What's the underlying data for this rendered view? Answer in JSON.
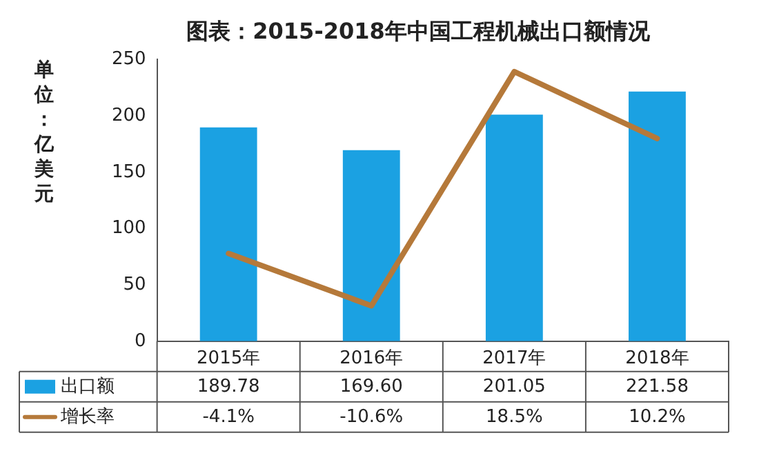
{
  "chart_data": {
    "type": "bar",
    "title": "图表：2015-2018年中国工程机械出口额情况",
    "ylabel": "单位：亿美元",
    "categories": [
      "2015年",
      "2016年",
      "2017年",
      "2018年"
    ],
    "series": [
      {
        "name": "出口额",
        "color": "#1ba1e2",
        "values": [
          189.78,
          169.6,
          201.05,
          221.58
        ],
        "value_labels": [
          "189.78",
          "169.60",
          "201.05",
          "221.58"
        ]
      },
      {
        "name": "增长率",
        "type": "line",
        "axis": "y2",
        "color": "#b5793a",
        "values": [
          -4.1,
          -10.6,
          18.5,
          10.2
        ],
        "value_labels": [
          "-4.1%",
          "-10.6%",
          "18.5%",
          "10.2%"
        ]
      }
    ],
    "ylim": [
      0,
      250
    ],
    "yticks": [
      0,
      50,
      100,
      150,
      200,
      250
    ],
    "legend": "bottom",
    "marker": "none"
  }
}
